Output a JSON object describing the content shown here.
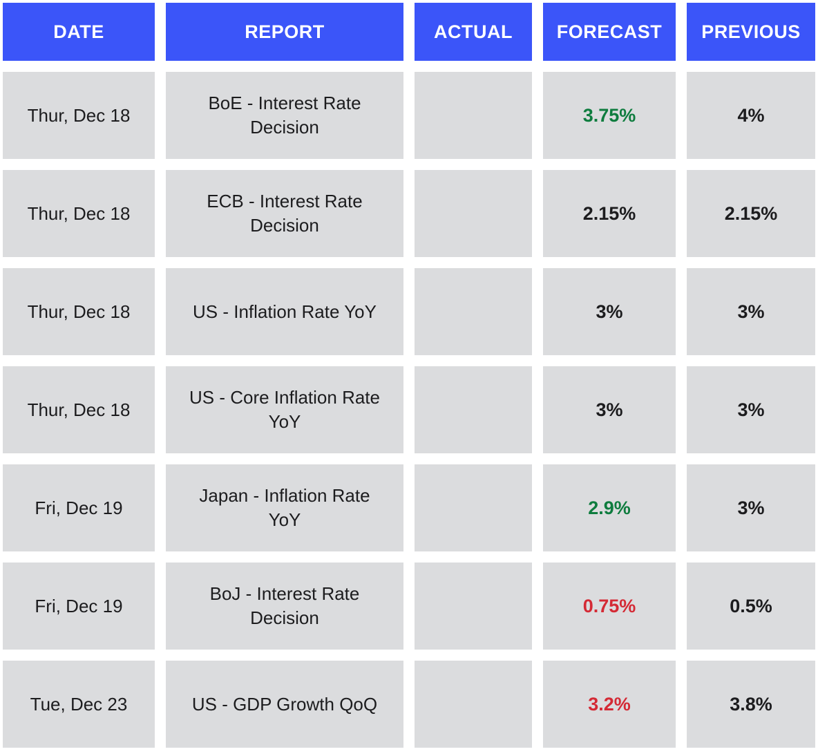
{
  "chart_data": {
    "type": "table",
    "title": "",
    "columns": [
      "DATE",
      "REPORT",
      "ACTUAL",
      "FORECAST",
      "PREVIOUS"
    ],
    "rows": [
      {
        "date": "Thur, Dec 18",
        "report": "BoE - Interest Rate Decision",
        "actual": "",
        "forecast": "3.75%",
        "forecast_color": "green",
        "previous": "4%"
      },
      {
        "date": "Thur, Dec 18",
        "report": "ECB - Interest Rate Decision",
        "actual": "",
        "forecast": "2.15%",
        "forecast_color": "default",
        "previous": "2.15%"
      },
      {
        "date": "Thur, Dec 18",
        "report": "US - Inflation Rate YoY",
        "actual": "",
        "forecast": "3%",
        "forecast_color": "default",
        "previous": "3%"
      },
      {
        "date": "Thur, Dec 18",
        "report": "US - Core Inflation Rate YoY",
        "actual": "",
        "forecast": "3%",
        "forecast_color": "default",
        "previous": "3%"
      },
      {
        "date": "Fri, Dec 19",
        "report": "Japan - Inflation Rate YoY",
        "actual": "",
        "forecast": "2.9%",
        "forecast_color": "green",
        "previous": "3%"
      },
      {
        "date": "Fri, Dec 19",
        "report": "BoJ - Interest Rate Decision",
        "actual": "",
        "forecast": "0.75%",
        "forecast_color": "red",
        "previous": "0.5%"
      },
      {
        "date": "Tue, Dec 23",
        "report": "US - GDP Growth QoQ",
        "actual": "",
        "forecast": "3.2%",
        "forecast_color": "red",
        "previous": "3.8%"
      }
    ]
  },
  "colors": {
    "header_bg": "#3B55F9",
    "header_text": "#FFFFFF",
    "cell_bg": "#DBDCDE",
    "text": "#1C1C1E",
    "green": "#0E7C3E",
    "red": "#D42A35"
  }
}
